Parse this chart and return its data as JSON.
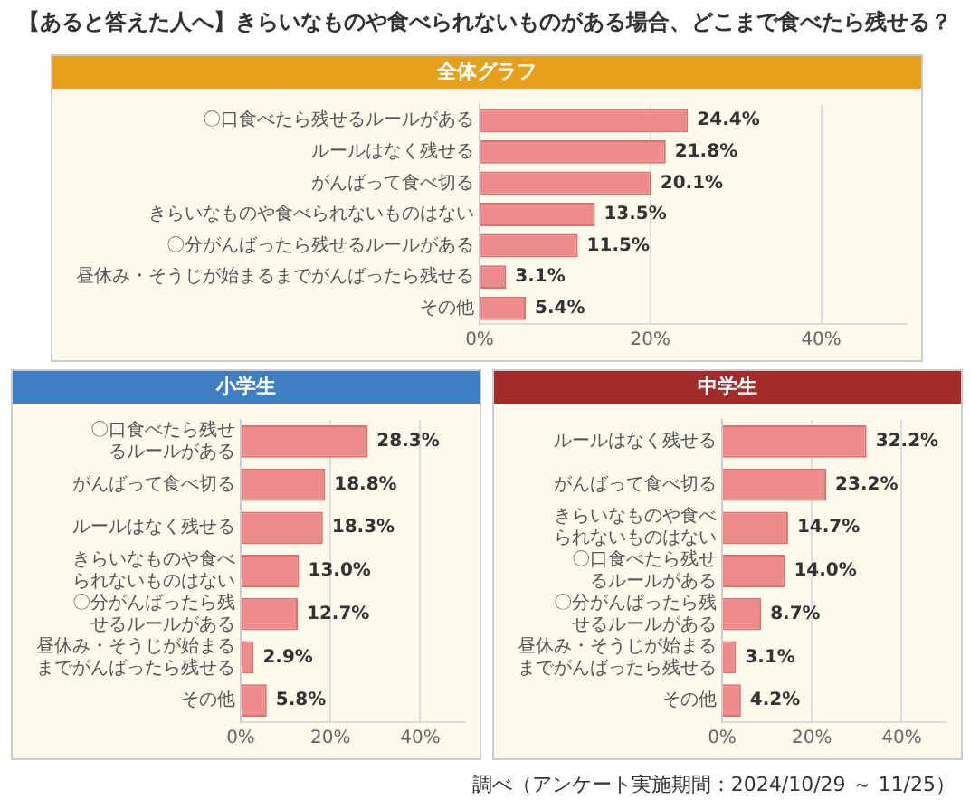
{
  "chart_data": [
    {
      "type": "bar",
      "orientation": "horizontal",
      "title": "【あると答えた人へ】きらいなものや食べられないものがある場合、どこまで食べたら残せる？",
      "subtitle": "全体グラフ",
      "categories": [
        "〇口食べたら残せるルールがある",
        "ルールはなく残せる",
        "がんばって食べ切る",
        "きらいなものや食べられないものはない",
        "〇分がんばったら残せるルールがある",
        "昼休み・そうじが始まるまでがんばったら残せる",
        "その他"
      ],
      "values": [
        24.4,
        21.8,
        20.1,
        13.5,
        11.5,
        3.1,
        5.4
      ],
      "value_labels": [
        "24.4%",
        "21.8%",
        "20.1%",
        "13.5%",
        "11.5%",
        "3.1%",
        "5.4%"
      ],
      "color": "#ee8c8c",
      "xlim": [
        0,
        50
      ],
      "xticks": [
        {
          "value": 0,
          "label": "0%"
        },
        {
          "value": 20,
          "label": "20%"
        },
        {
          "value": 40,
          "label": "40%"
        }
      ],
      "grid": "x"
    },
    {
      "type": "bar",
      "orientation": "horizontal",
      "title": "小学生",
      "categories": [
        "〇口食べたら残せるルールがある",
        "がんばって食べ切る",
        "ルールはなく残せる",
        "きらいなものや食べられないものはない",
        "〇分がんばったら残せるルールがある",
        "昼休み・そうじが始まるまでがんばったら残せる",
        "その他"
      ],
      "values": [
        28.3,
        18.8,
        18.3,
        13.0,
        12.7,
        2.9,
        5.8
      ],
      "value_labels": [
        "28.3%",
        "18.8%",
        "18.3%",
        "13.0%",
        "12.7%",
        "2.9%",
        "5.8%"
      ],
      "color": "#ee8c8c",
      "xlim": [
        0,
        50
      ],
      "xticks": [
        {
          "value": 0,
          "label": "0%"
        },
        {
          "value": 20,
          "label": "20%"
        },
        {
          "value": 40,
          "label": "40%"
        }
      ],
      "grid": "x"
    },
    {
      "type": "bar",
      "orientation": "horizontal",
      "title": "中学生",
      "categories": [
        "ルールはなく残せる",
        "がんばって食べ切る",
        "きらいなものや食べられないものはない",
        "〇口食べたら残せるルールがある",
        "〇分がんばったら残せるルールがある",
        "昼休み・そうじが始まるまでがんばったら残せる",
        "その他"
      ],
      "values": [
        32.2,
        23.2,
        14.7,
        14.0,
        8.7,
        3.1,
        4.2
      ],
      "value_labels": [
        "32.2%",
        "23.2%",
        "14.7%",
        "14.0%",
        "8.7%",
        "3.1%",
        "4.2%"
      ],
      "color": "#ee8c8c",
      "xlim": [
        0,
        50
      ],
      "xticks": [
        {
          "value": 0,
          "label": "0%"
        },
        {
          "value": 20,
          "label": "20%"
        },
        {
          "value": 40,
          "label": "40%"
        }
      ],
      "grid": "x",
      "annotations": [
        "調べ（アンケート実施期間：2024/10/29 ～ 11/25）"
      ]
    }
  ]
}
